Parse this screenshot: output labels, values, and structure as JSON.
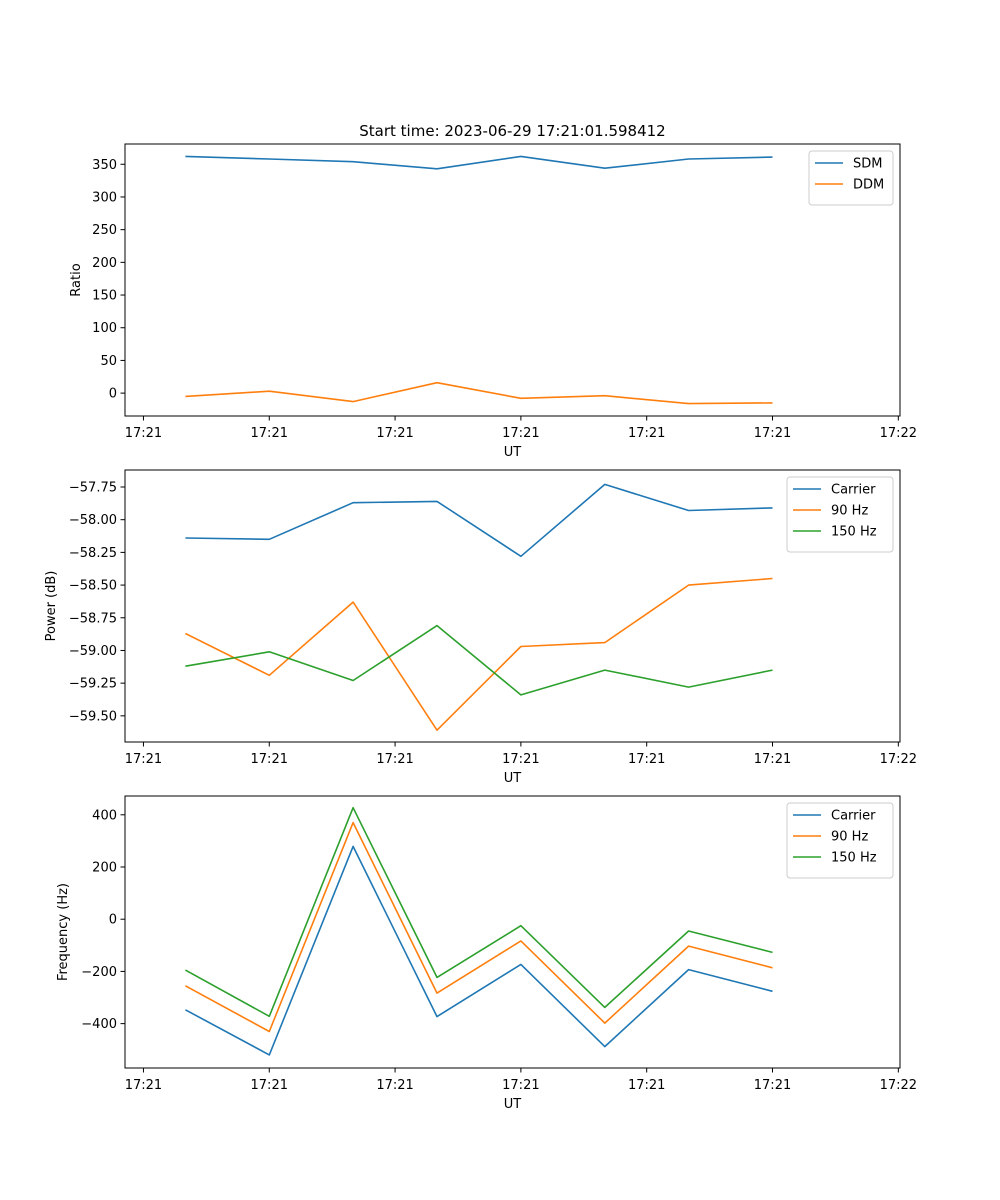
{
  "figure_title": "Start time: 2023-06-29 17:21:01.598412",
  "chart_data": [
    {
      "type": "line",
      "x": [
        1,
        2,
        3,
        4,
        5,
        6,
        7,
        8
      ],
      "x_tick_positions": [
        0.5,
        2,
        3.5,
        5,
        6.5,
        8,
        9.5
      ],
      "x_tick_labels": [
        "17:21",
        "17:21",
        "17:21",
        "17:21",
        "17:21",
        "17:21",
        "17:22"
      ],
      "xlim": [
        0.28,
        9.52
      ],
      "xlabel": "UT",
      "ylabel": "Ratio",
      "ylim": [
        -35,
        381
      ],
      "yticks": [
        0,
        50,
        100,
        150,
        200,
        250,
        300,
        350
      ],
      "y_tick_labels": [
        "0",
        "50",
        "100",
        "150",
        "200",
        "250",
        "300",
        "350"
      ],
      "legend_position": "top-right",
      "grid": false,
      "series": [
        {
          "name": "SDM",
          "color": "#1f77b4",
          "values": [
            362,
            358,
            354,
            343,
            362,
            344,
            358,
            361
          ]
        },
        {
          "name": "DDM",
          "color": "#ff7f0e",
          "values": [
            -5,
            3,
            -13,
            16,
            -8,
            -4,
            -16,
            -15
          ]
        }
      ]
    },
    {
      "type": "line",
      "x": [
        1,
        2,
        3,
        4,
        5,
        6,
        7,
        8
      ],
      "x_tick_positions": [
        0.5,
        2,
        3.5,
        5,
        6.5,
        8,
        9.5
      ],
      "x_tick_labels": [
        "17:21",
        "17:21",
        "17:21",
        "17:21",
        "17:21",
        "17:21",
        "17:22"
      ],
      "xlim": [
        0.28,
        9.52
      ],
      "xlabel": "UT",
      "ylabel": "Power (dB)",
      "ylim": [
        -59.7,
        -57.62
      ],
      "yticks": [
        -59.5,
        -59.25,
        -59.0,
        -58.75,
        -58.5,
        -58.25,
        -58.0,
        -57.75
      ],
      "y_tick_labels": [
        "−59.50",
        "−59.25",
        "−59.00",
        "−58.75",
        "−58.50",
        "−58.25",
        "−58.00",
        "−57.75"
      ],
      "legend_position": "top-right",
      "grid": false,
      "series": [
        {
          "name": "Carrier",
          "color": "#1f77b4",
          "values": [
            -58.14,
            -58.15,
            -57.87,
            -57.86,
            -58.28,
            -57.73,
            -57.93,
            -57.91
          ]
        },
        {
          "name": "90 Hz",
          "color": "#ff7f0e",
          "values": [
            -58.87,
            -59.19,
            -58.63,
            -59.61,
            -58.97,
            -58.94,
            -58.5,
            -58.45
          ]
        },
        {
          "name": "150 Hz",
          "color": "#2ca02c",
          "values": [
            -59.12,
            -59.01,
            -59.23,
            -58.81,
            -59.34,
            -59.15,
            -59.28,
            -59.15
          ]
        }
      ]
    },
    {
      "type": "line",
      "x": [
        1,
        2,
        3,
        4,
        5,
        6,
        7,
        8
      ],
      "x_tick_positions": [
        0.5,
        2,
        3.5,
        5,
        6.5,
        8,
        9.5
      ],
      "x_tick_labels": [
        "17:21",
        "17:21",
        "17:21",
        "17:21",
        "17:21",
        "17:21",
        "17:22"
      ],
      "xlim": [
        0.28,
        9.52
      ],
      "xlabel": "UT",
      "ylabel": "Frequency (Hz)",
      "ylim": [
        -570,
        472
      ],
      "yticks": [
        -400,
        -200,
        0,
        200,
        400
      ],
      "y_tick_labels": [
        "−400",
        "−200",
        "0",
        "200",
        "400"
      ],
      "legend_position": "top-right",
      "grid": false,
      "series": [
        {
          "name": "Carrier",
          "color": "#1f77b4",
          "values": [
            -347,
            -520,
            279,
            -373,
            -173,
            -488,
            -193,
            -276
          ]
        },
        {
          "name": "90 Hz",
          "color": "#ff7f0e",
          "values": [
            -255,
            -430,
            370,
            -283,
            -83,
            -398,
            -103,
            -186
          ]
        },
        {
          "name": "150 Hz",
          "color": "#2ca02c",
          "values": [
            -195,
            -372,
            427,
            -223,
            -25,
            -338,
            -45,
            -127
          ]
        }
      ]
    }
  ]
}
